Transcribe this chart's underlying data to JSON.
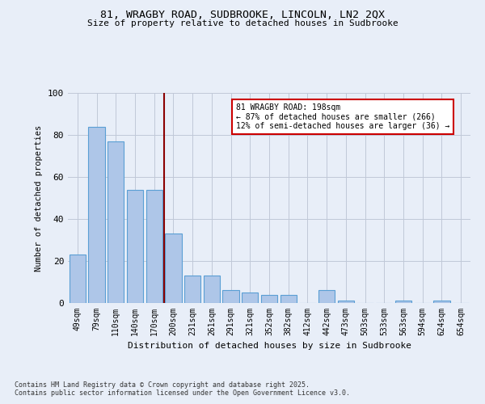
{
  "title1": "81, WRAGBY ROAD, SUDBROOKE, LINCOLN, LN2 2QX",
  "title2": "Size of property relative to detached houses in Sudbrooke",
  "xlabel": "Distribution of detached houses by size in Sudbrooke",
  "ylabel": "Number of detached properties",
  "categories": [
    "49sqm",
    "79sqm",
    "110sqm",
    "140sqm",
    "170sqm",
    "200sqm",
    "231sqm",
    "261sqm",
    "291sqm",
    "321sqm",
    "352sqm",
    "382sqm",
    "412sqm",
    "442sqm",
    "473sqm",
    "503sqm",
    "533sqm",
    "563sqm",
    "594sqm",
    "624sqm",
    "654sqm"
  ],
  "values": [
    23,
    84,
    77,
    54,
    54,
    33,
    13,
    13,
    6,
    5,
    4,
    4,
    0,
    6,
    1,
    0,
    0,
    1,
    0,
    1,
    0
  ],
  "bar_color": "#aec6e8",
  "bar_edge_color": "#5a9fd4",
  "ref_line_index": 5,
  "ref_line_color": "#8b0000",
  "annotation_text": "81 WRAGBY ROAD: 198sqm\n← 87% of detached houses are smaller (266)\n12% of semi-detached houses are larger (36) →",
  "annotation_box_color": "#ffffff",
  "annotation_box_edge": "#cc0000",
  "footer1": "Contains HM Land Registry data © Crown copyright and database right 2025.",
  "footer2": "Contains public sector information licensed under the Open Government Licence v3.0.",
  "ylim": [
    0,
    100
  ],
  "yticks": [
    0,
    20,
    40,
    60,
    80,
    100
  ],
  "bg_color": "#e8eef8",
  "plot_bg": "#e8eef8"
}
